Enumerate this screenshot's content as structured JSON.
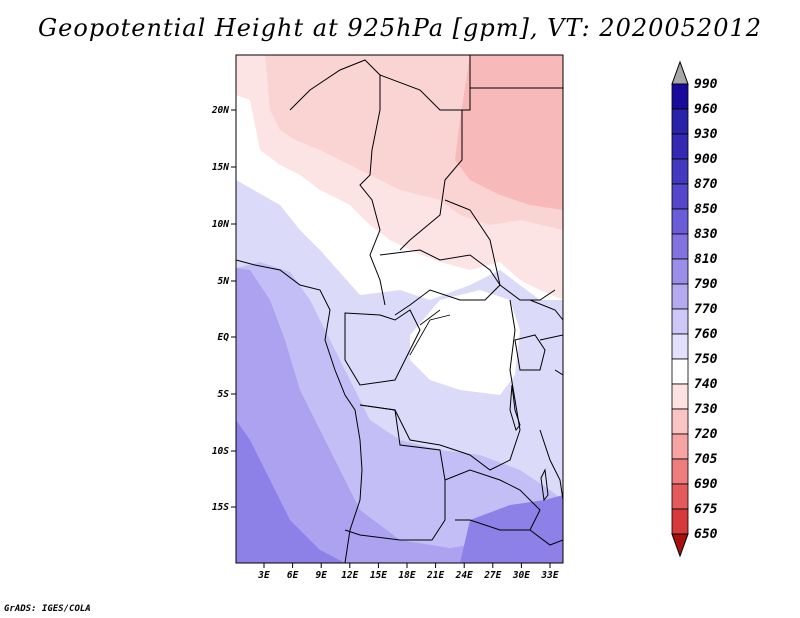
{
  "title": "Geopotential Height at 925hPa [gpm], VT: 2020052012",
  "credit": "GrADS: IGES/COLA",
  "map": {
    "lon_labels": [
      "3E",
      "6E",
      "9E",
      "12E",
      "15E",
      "18E",
      "21E",
      "24E",
      "27E",
      "30E",
      "33E"
    ],
    "lat_labels": [
      "20N",
      "15N",
      "10N",
      "5N",
      "EQ",
      "5S",
      "10S",
      "15S"
    ]
  },
  "colorbar": {
    "levels": [
      "990",
      "960",
      "930",
      "900",
      "870",
      "850",
      "830",
      "810",
      "790",
      "770",
      "760",
      "750",
      "740",
      "730",
      "720",
      "705",
      "690",
      "675",
      "650"
    ],
    "colors": [
      "#1a0a9c",
      "#2a22a8",
      "#3529b4",
      "#4438c0",
      "#5547cc",
      "#6a5cd8",
      "#8373e0",
      "#9a8ee8",
      "#b5aaef",
      "#cdc8f5",
      "#e2e0fa",
      "#ffffff",
      "#fde2e2",
      "#fbc4c4",
      "#f6a3a3",
      "#ef7d7d",
      "#e55a5a",
      "#d73a3a",
      "#c42323",
      "#a81010"
    ]
  },
  "field_colors": {
    "upper_pink": "#f7b9b9",
    "mid_pink": "#fad3d3",
    "light_pink": "#fde4e4",
    "white": "#ffffff",
    "lavender_light": "#dcdaf9",
    "lavender": "#c4bef6",
    "purple": "#aca2f0",
    "purple_deep": "#8d80e6"
  }
}
